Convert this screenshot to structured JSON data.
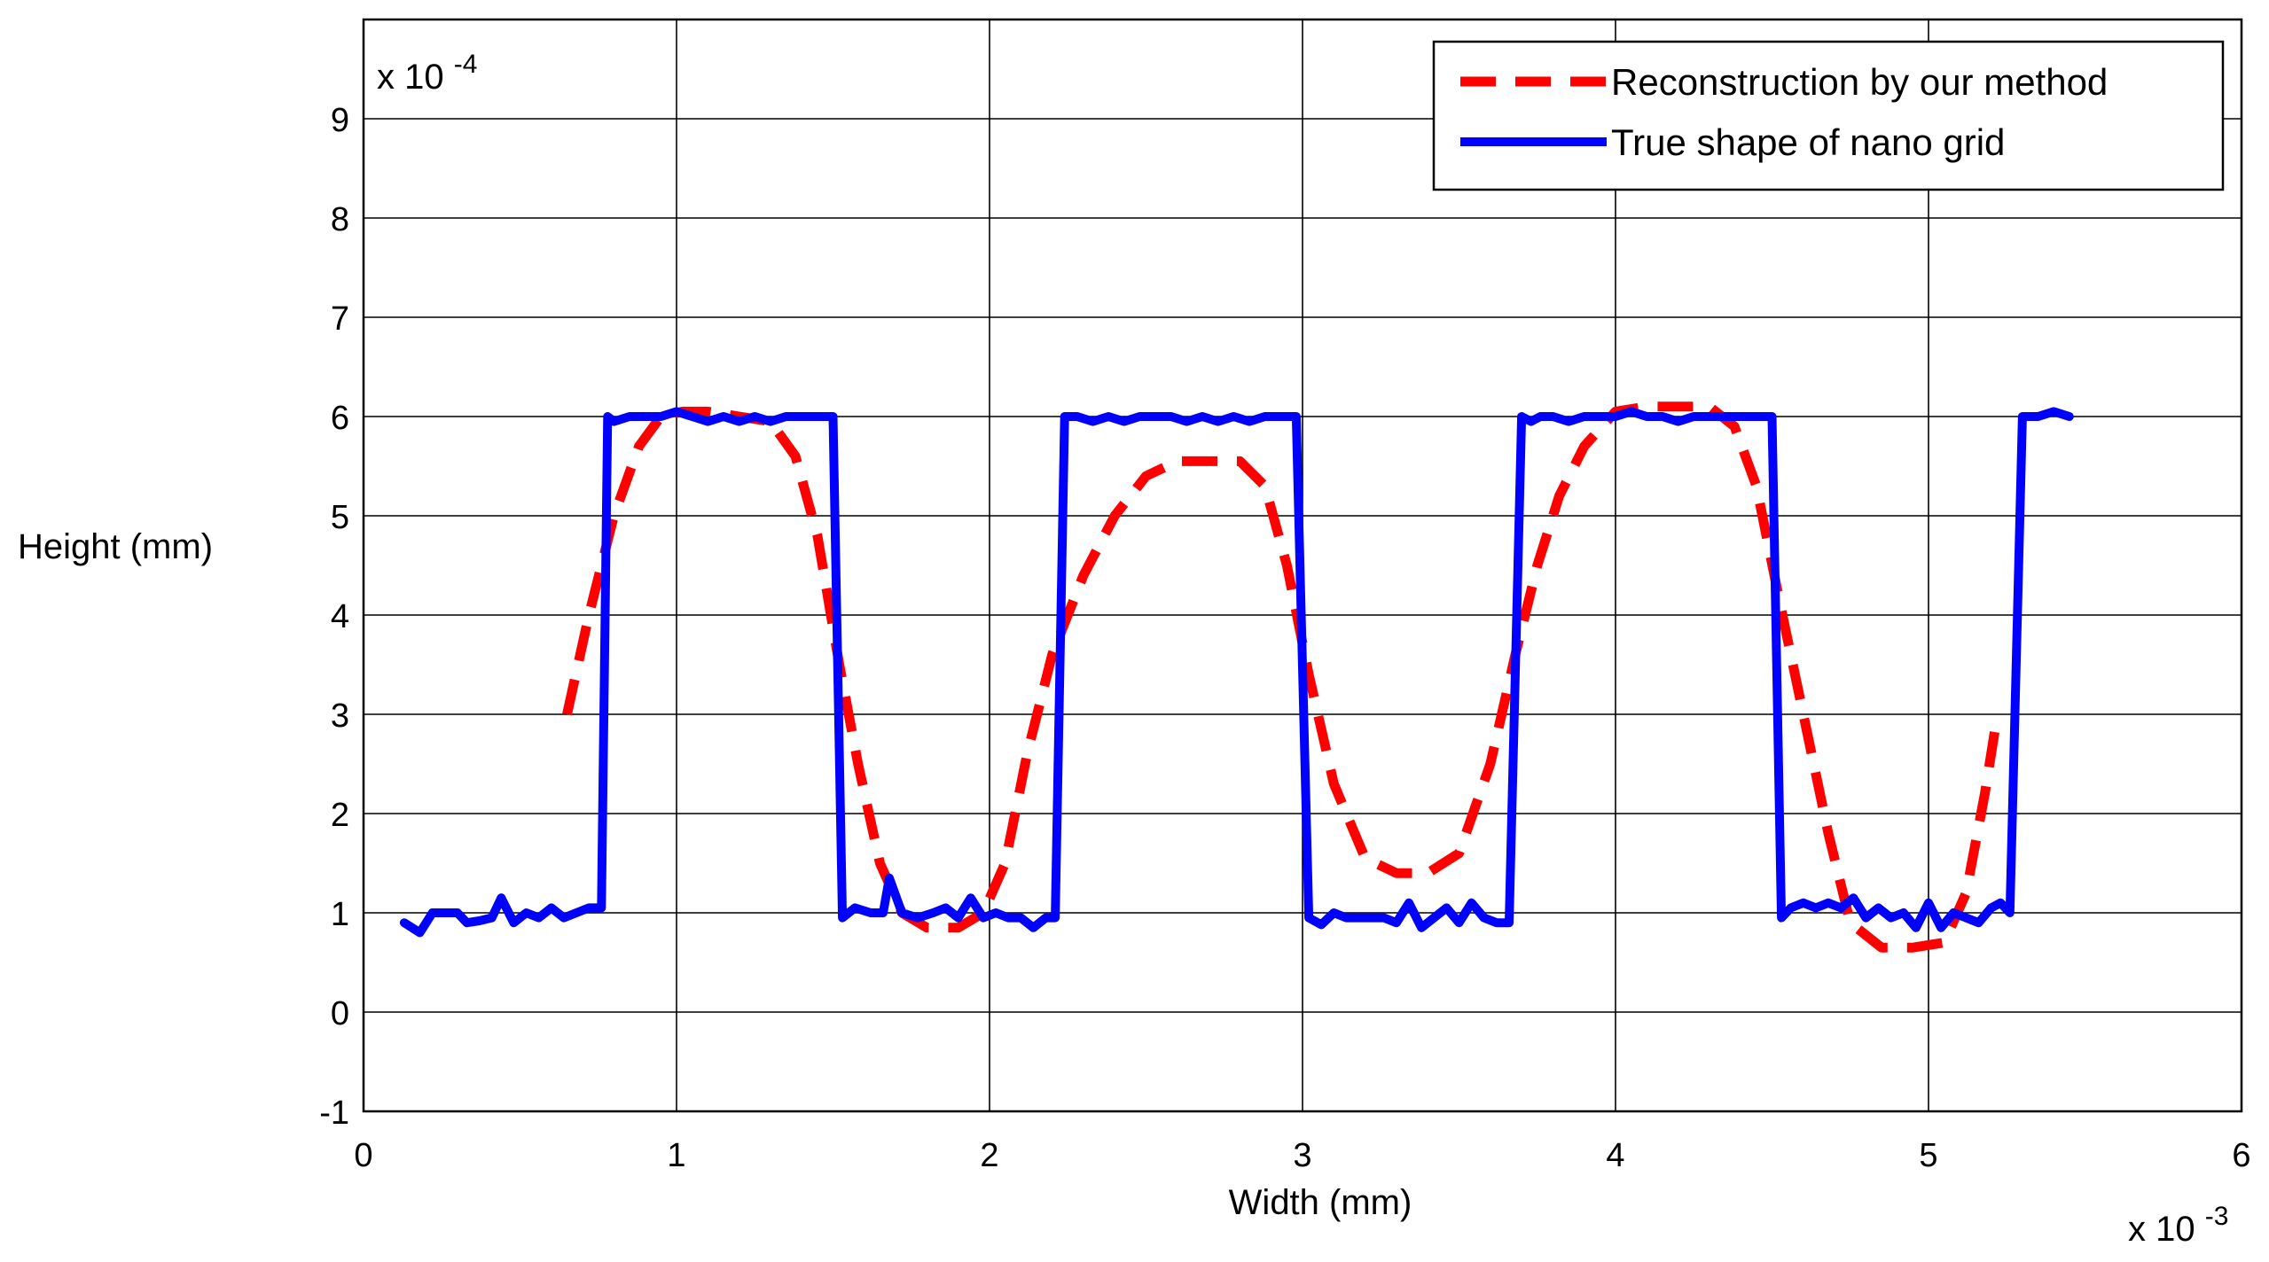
{
  "chart_data": {
    "type": "line",
    "title": "",
    "xlabel": "Width (mm)",
    "ylabel": "Height (mm)",
    "x_multiplier_text": "x 10",
    "x_multiplier_exp": "-3",
    "y_multiplier_text": "x 10",
    "y_multiplier_exp": "-4",
    "xlim": [
      0,
      6
    ],
    "ylim": [
      -1,
      10
    ],
    "x_ticks": [
      0,
      1,
      2,
      3,
      4,
      5,
      6
    ],
    "y_ticks": [
      -1,
      0,
      1,
      2,
      3,
      4,
      5,
      6,
      7,
      8,
      9
    ],
    "x_tick_labels": [
      "0",
      "1",
      "2",
      "3",
      "4",
      "5",
      "6"
    ],
    "y_tick_labels": [
      "-1",
      "0",
      "1",
      "2",
      "3",
      "4",
      "5",
      "6",
      "7",
      "8",
      "9"
    ],
    "grid": true,
    "legend_position": "top-right",
    "series": [
      {
        "name": "Reconstruction by our method",
        "color": "#ff0000",
        "style": "dashed",
        "x": [
          0.65,
          0.72,
          0.8,
          0.88,
          0.95,
          1.02,
          1.1,
          1.2,
          1.3,
          1.38,
          1.45,
          1.52,
          1.58,
          1.65,
          1.72,
          1.8,
          1.9,
          1.98,
          2.05,
          2.12,
          2.2,
          2.3,
          2.4,
          2.5,
          2.6,
          2.7,
          2.8,
          2.88,
          2.95,
          3.02,
          3.1,
          3.2,
          3.3,
          3.4,
          3.5,
          3.6,
          3.68,
          3.75,
          3.82,
          3.9,
          4.0,
          4.1,
          4.2,
          4.3,
          4.38,
          4.45,
          4.52,
          4.6,
          4.68,
          4.75,
          4.85,
          4.95,
          5.05,
          5.12,
          5.18,
          5.22
        ],
        "y": [
          3.0,
          4.0,
          5.0,
          5.7,
          6.0,
          6.05,
          6.05,
          6.0,
          5.95,
          5.6,
          4.8,
          3.5,
          2.5,
          1.5,
          1.0,
          0.85,
          0.85,
          1.0,
          1.5,
          2.6,
          3.6,
          4.4,
          5.0,
          5.4,
          5.55,
          5.55,
          5.55,
          5.3,
          4.5,
          3.4,
          2.3,
          1.55,
          1.4,
          1.4,
          1.6,
          2.5,
          3.6,
          4.5,
          5.2,
          5.7,
          6.05,
          6.1,
          6.1,
          6.1,
          5.9,
          5.3,
          4.2,
          3.0,
          1.8,
          0.9,
          0.65,
          0.65,
          0.7,
          1.2,
          2.2,
          3.0
        ]
      },
      {
        "name": "True shape of nano grid",
        "color": "#0000ff",
        "style": "solid",
        "x": [
          0.13,
          0.18,
          0.22,
          0.26,
          0.3,
          0.33,
          0.37,
          0.41,
          0.44,
          0.48,
          0.52,
          0.56,
          0.6,
          0.64,
          0.68,
          0.72,
          0.76,
          0.78,
          0.8,
          0.85,
          0.9,
          0.95,
          1.0,
          1.05,
          1.1,
          1.15,
          1.2,
          1.25,
          1.3,
          1.35,
          1.4,
          1.45,
          1.5,
          1.53,
          1.57,
          1.62,
          1.66,
          1.68,
          1.72,
          1.77,
          1.82,
          1.86,
          1.9,
          1.94,
          1.98,
          2.02,
          2.06,
          2.1,
          2.14,
          2.18,
          2.21,
          2.24,
          2.28,
          2.33,
          2.38,
          2.43,
          2.48,
          2.53,
          2.58,
          2.63,
          2.68,
          2.73,
          2.78,
          2.83,
          2.88,
          2.93,
          2.98,
          3.02,
          3.06,
          3.1,
          3.14,
          3.18,
          3.22,
          3.26,
          3.3,
          3.34,
          3.38,
          3.42,
          3.46,
          3.5,
          3.54,
          3.58,
          3.62,
          3.66,
          3.7,
          3.73,
          3.76,
          3.8,
          3.85,
          3.9,
          3.95,
          4.0,
          4.05,
          4.1,
          4.15,
          4.2,
          4.25,
          4.3,
          4.35,
          4.4,
          4.45,
          4.5,
          4.53,
          4.56,
          4.6,
          4.64,
          4.68,
          4.72,
          4.76,
          4.8,
          4.84,
          4.88,
          4.92,
          4.96,
          5.0,
          5.04,
          5.08,
          5.12,
          5.16,
          5.2,
          5.23,
          5.26,
          5.3,
          5.35,
          5.4,
          5.45
        ],
        "y": [
          0.9,
          0.8,
          1.0,
          1.0,
          1.0,
          0.9,
          0.92,
          0.95,
          1.15,
          0.9,
          1.0,
          0.95,
          1.05,
          0.95,
          1.0,
          1.05,
          1.05,
          6.0,
          5.95,
          6.0,
          6.0,
          6.0,
          6.05,
          6.0,
          5.95,
          6.0,
          5.95,
          6.0,
          5.95,
          6.0,
          6.0,
          6.0,
          6.0,
          0.95,
          1.05,
          1.0,
          1.0,
          1.35,
          1.0,
          0.95,
          1.0,
          1.05,
          0.95,
          1.15,
          0.95,
          1.0,
          0.95,
          0.95,
          0.85,
          0.95,
          0.95,
          6.0,
          6.0,
          5.95,
          6.0,
          5.95,
          6.0,
          6.0,
          6.0,
          5.95,
          6.0,
          5.95,
          6.0,
          5.95,
          6.0,
          6.0,
          6.0,
          0.95,
          0.88,
          1.0,
          0.95,
          0.95,
          0.95,
          0.95,
          0.9,
          1.1,
          0.85,
          0.95,
          1.05,
          0.9,
          1.1,
          0.95,
          0.9,
          0.9,
          6.0,
          5.95,
          6.0,
          6.0,
          5.95,
          6.0,
          6.0,
          6.0,
          6.05,
          6.0,
          6.0,
          5.95,
          6.0,
          6.0,
          6.0,
          6.0,
          6.0,
          6.0,
          0.95,
          1.05,
          1.1,
          1.05,
          1.1,
          1.05,
          1.15,
          0.95,
          1.05,
          0.95,
          1.0,
          0.85,
          1.1,
          0.85,
          1.0,
          0.95,
          0.9,
          1.05,
          1.1,
          1.0,
          6.0,
          6.0,
          6.05,
          6.0
        ]
      }
    ]
  }
}
